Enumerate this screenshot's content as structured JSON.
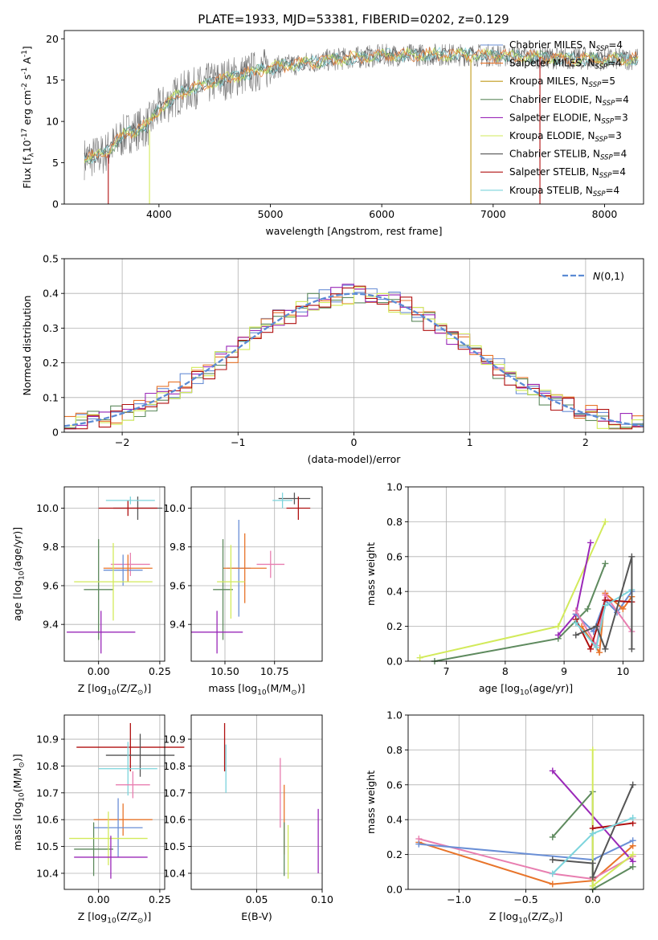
{
  "title": "PLATE=1933, MJD=53381, FIBERID=0202, z=0.129",
  "colors": {
    "Chabrier MILES": "#6a8fd6",
    "Salpeter MILES": "#e8742a",
    "Kroupa MILES": "#c09a1a",
    "Chabrier ELODIE": "#5e8a5e",
    "Salpeter ELODIE": "#9a28b8",
    "Kroupa ELODIE": "#d2ea5a",
    "Chabrier STELIB": "#555555",
    "Salpeter STELIB": "#b01010",
    "Kroupa STELIB": "#7cd4dc",
    "pink": "#e87eb0",
    "grid": "#b0b0b0",
    "gauss": "#5b8bd4"
  },
  "chart_data": [
    {
      "id": "spectrum",
      "type": "line",
      "xlabel": "wavelength [Angstrom, rest frame]",
      "ylabel": "Flux [f$_\\lambda$10$^{-17}$ erg cm$^{-2}$ s$^{-1}$ A$^{-1}$]",
      "xlim": [
        3150,
        8350
      ],
      "ylim": [
        0,
        21
      ],
      "xticks": [
        4000,
        5000,
        6000,
        7000,
        8000
      ],
      "yticks": [
        0,
        5,
        10,
        15,
        20
      ],
      "grid": false,
      "legend_position": "right",
      "legend": [
        {
          "model": "Chabrier MILES",
          "label": "Chabrier MILES, N",
          "sub": "SSP",
          "n": "=4"
        },
        {
          "model": "Salpeter MILES",
          "label": "Salpeter MILES, N",
          "sub": "SSP",
          "n": "=4"
        },
        {
          "model": "Kroupa MILES",
          "label": "Kroupa MILES, N",
          "sub": "SSP",
          "n": "=5"
        },
        {
          "model": "Chabrier ELODIE",
          "label": "Chabrier ELODIE, N",
          "sub": "SSP",
          "n": "=4"
        },
        {
          "model": "Salpeter ELODIE",
          "label": "Salpeter ELODIE, N",
          "sub": "SSP",
          "n": "=3"
        },
        {
          "model": "Kroupa ELODIE",
          "label": "Kroupa ELODIE, N",
          "sub": "SSP",
          "n": "=3"
        },
        {
          "model": "Chabrier STELIB",
          "label": "Chabrier STELIB, N",
          "sub": "SSP",
          "n": "=4"
        },
        {
          "model": "Salpeter STELIB",
          "label": "Salpeter STELIB, N",
          "sub": "SSP",
          "n": "=4"
        },
        {
          "model": "Kroupa STELIB",
          "label": "Kroupa STELIB, N",
          "sub": "SSP",
          "n": "=4"
        }
      ],
      "continuum": [
        [
          3330,
          5.5
        ],
        [
          3500,
          6.0
        ],
        [
          3700,
          8.5
        ],
        [
          3900,
          9.5
        ],
        [
          4000,
          11.5
        ],
        [
          4200,
          13.5
        ],
        [
          4500,
          14.8
        ],
        [
          5000,
          16.5
        ],
        [
          5500,
          17.4
        ],
        [
          6000,
          18.0
        ],
        [
          6500,
          18.1
        ],
        [
          7000,
          18.0
        ],
        [
          7500,
          17.7
        ],
        [
          8000,
          17.5
        ],
        [
          8300,
          17.6
        ]
      ],
      "drop_lines": [
        {
          "model": "Salpeter STELIB",
          "x": 3545,
          "y_from": 6.0
        },
        {
          "model": "Kroupa ELODIE",
          "x": 3915,
          "y_from": 9.0
        },
        {
          "model": "Kroupa MILES",
          "x": 6800,
          "y_from": 17.5
        },
        {
          "model": "Salpeter STELIB",
          "x": 7420,
          "y_from": 17.8
        }
      ]
    },
    {
      "id": "residuals",
      "type": "histogram",
      "xlabel": "(data-model)/error",
      "ylabel": "Normed distribution",
      "xlim": [
        -2.5,
        2.5
      ],
      "ylim": [
        0,
        0.5
      ],
      "xticks": [
        -2,
        -1,
        0,
        1,
        2
      ],
      "xticklabels": [
        "−2",
        "−1",
        "0",
        "1",
        "2"
      ],
      "yticks": [
        0.0,
        0.1,
        0.2,
        0.3,
        0.4,
        0.5
      ],
      "grid": true,
      "bin_width": 0.1,
      "legend_position": "top-right",
      "legend": [
        {
          "label": "$\\mathcal{N}(0,1)$"
        }
      ],
      "series_models": [
        "Chabrier MILES",
        "Salpeter MILES",
        "Chabrier ELODIE",
        "Salpeter ELODIE",
        "Kroupa ELODIE",
        "Salpeter STELIB"
      ]
    },
    {
      "id": "age-vs-Z",
      "type": "errorbar",
      "xlabel": "Z [log$_{10}$(Z/Z$_\\odot$)]",
      "ylabel": "age  [log$_{10}$(age/yr)]",
      "xlim": [
        -0.14,
        0.27
      ],
      "ylim": [
        9.21,
        10.11
      ],
      "xticks": [
        0.0,
        0.25
      ],
      "xticklabels": [
        "0.00",
        "0.25"
      ],
      "yticks": [
        9.4,
        9.6,
        9.8,
        10.0
      ],
      "yticklabels": [
        "9.4",
        "9.6",
        "9.8",
        "10.0"
      ],
      "grid": true,
      "points": [
        {
          "model": "Chabrier STELIB",
          "x": 0.16,
          "xerr": 0.1,
          "y": 10.0,
          "yerr": 0.06
        },
        {
          "model": "Salpeter STELIB",
          "x": 0.12,
          "xerr": 0.12,
          "y": 10.0,
          "yerr": 0.04
        },
        {
          "model": "Kroupa STELIB",
          "x": 0.13,
          "xerr": 0.1,
          "y": 10.04,
          "yerr": 0.02
        },
        {
          "model": "pink",
          "x": 0.13,
          "xerr": 0.08,
          "y": 9.71,
          "yerr": 0.06
        },
        {
          "model": "Chabrier MILES",
          "x": 0.1,
          "xerr": 0.08,
          "y": 9.68,
          "yerr": 0.08
        },
        {
          "model": "Salpeter MILES",
          "x": 0.12,
          "xerr": 0.1,
          "y": 9.69,
          "yerr": 0.07
        },
        {
          "model": "Chabrier ELODIE",
          "x": 0.0,
          "xerr": 0.06,
          "y": 9.58,
          "yerr": 0.26
        },
        {
          "model": "Kroupa ELODIE",
          "x": 0.06,
          "xerr": 0.16,
          "y": 9.62,
          "yerr": 0.2
        },
        {
          "model": "Salpeter ELODIE",
          "x": 0.01,
          "xerr": 0.14,
          "y": 9.36,
          "yerr": 0.11
        }
      ]
    },
    {
      "id": "age-vs-mass",
      "type": "errorbar",
      "xlabel": "mass [log$_{10}$(M/M$_\\odot$)]",
      "ylabel": "",
      "xlim": [
        10.33,
        10.99
      ],
      "ylim": [
        9.21,
        10.11
      ],
      "xticks": [
        10.5,
        10.75
      ],
      "xticklabels": [
        "10.50",
        "10.75"
      ],
      "yticks": [
        9.4,
        9.6,
        9.8,
        10.0
      ],
      "yticklabels": [
        "9.4",
        "9.6",
        "9.8",
        "10.0"
      ],
      "grid": true,
      "points": [
        {
          "model": "Chabrier STELIB",
          "x": 10.85,
          "xerr": 0.08,
          "y": 10.05,
          "yerr": 0.03
        },
        {
          "model": "Salpeter STELIB",
          "x": 10.87,
          "xerr": 0.06,
          "y": 10.0,
          "yerr": 0.06
        },
        {
          "model": "Kroupa STELIB",
          "x": 10.79,
          "xerr": 0.05,
          "y": 10.04,
          "yerr": 0.04
        },
        {
          "model": "pink",
          "x": 10.73,
          "xerr": 0.07,
          "y": 9.71,
          "yerr": 0.07
        },
        {
          "model": "Chabrier MILES",
          "x": 10.57,
          "xerr": 0.06,
          "y": 9.69,
          "yerr": 0.25
        },
        {
          "model": "Salpeter MILES",
          "x": 10.6,
          "xerr": 0.11,
          "y": 9.69,
          "yerr": 0.18
        },
        {
          "model": "Chabrier ELODIE",
          "x": 10.49,
          "xerr": 0.05,
          "y": 9.58,
          "yerr": 0.26
        },
        {
          "model": "Kroupa ELODIE",
          "x": 10.53,
          "xerr": 0.07,
          "y": 9.62,
          "yerr": 0.19
        },
        {
          "model": "Salpeter ELODIE",
          "x": 10.46,
          "xerr": 0.13,
          "y": 9.36,
          "yerr": 0.11
        }
      ]
    },
    {
      "id": "weight-vs-age",
      "type": "line",
      "xlabel": "age  [log$_{10}$(age/yr)]",
      "ylabel": "mass weight",
      "xlim": [
        6.35,
        10.35
      ],
      "ylim": [
        0,
        1.0
      ],
      "xticks": [
        7,
        8,
        9,
        10
      ],
      "xticklabels": [
        "7",
        "8",
        "9",
        "10"
      ],
      "yticks": [
        0.0,
        0.2,
        0.4,
        0.6,
        0.8,
        1.0
      ],
      "yticklabels": [
        "0.0",
        "0.2",
        "0.4",
        "0.6",
        "0.8",
        "1.0"
      ],
      "grid": true,
      "series": [
        {
          "model": "Kroupa ELODIE",
          "x": [
            6.55,
            8.9,
            9.7
          ],
          "y": [
            0.02,
            0.2,
            0.8
          ]
        },
        {
          "model": "Chabrier ELODIE",
          "x": [
            6.8,
            8.9,
            9.4,
            9.7
          ],
          "y": [
            0.0,
            0.13,
            0.3,
            0.56
          ]
        },
        {
          "model": "Salpeter ELODIE",
          "x": [
            8.9,
            9.2,
            9.45
          ],
          "y": [
            0.15,
            0.27,
            0.68
          ]
        },
        {
          "model": "Chabrier MILES",
          "x": [
            9.2,
            9.5,
            9.7,
            9.9,
            10.15
          ],
          "y": [
            0.27,
            0.17,
            0.35,
            0.28,
            0.4
          ]
        },
        {
          "model": "Salpeter MILES",
          "x": [
            9.3,
            9.6,
            9.7,
            10.0,
            10.15
          ],
          "y": [
            0.2,
            0.05,
            0.39,
            0.3,
            0.37
          ]
        },
        {
          "model": "pink",
          "x": [
            9.2,
            9.55,
            9.7,
            10.15
          ],
          "y": [
            0.29,
            0.09,
            0.38,
            0.17
          ]
        },
        {
          "model": "Salpeter STELIB",
          "x": [
            9.2,
            9.45,
            9.7,
            10.15
          ],
          "y": [
            0.24,
            0.07,
            0.35,
            0.34
          ]
        },
        {
          "model": "Kroupa STELIB",
          "x": [
            9.2,
            9.55,
            9.7,
            10.15
          ],
          "y": [
            0.22,
            0.08,
            0.32,
            0.41
          ]
        },
        {
          "model": "Chabrier STELIB",
          "x": [
            9.2,
            9.55,
            9.7,
            10.15,
            10.15
          ],
          "y": [
            0.15,
            0.2,
            0.07,
            0.6,
            0.07
          ]
        }
      ]
    },
    {
      "id": "mass-vs-Z",
      "type": "errorbar",
      "xlabel": "Z [log$_{10}$(Z/Z$_\\odot$)]",
      "ylabel": "mass [log$_{10}$(M/M$_\\odot$)]",
      "xlim": [
        -0.14,
        0.27
      ],
      "ylim": [
        10.34,
        10.99
      ],
      "xticks": [
        0.0,
        0.25
      ],
      "xticklabels": [
        "0.00",
        "0.25"
      ],
      "yticks": [
        10.4,
        10.5,
        10.6,
        10.7,
        10.8,
        10.9
      ],
      "yticklabels": [
        "10.4",
        "10.5",
        "10.6",
        "10.7",
        "10.8",
        "10.9"
      ],
      "grid": true,
      "points": [
        {
          "model": "Salpeter STELIB",
          "x": 0.13,
          "xerr": 0.22,
          "y": 10.87,
          "yerr": 0.09
        },
        {
          "model": "Chabrier STELIB",
          "x": 0.17,
          "xerr": 0.14,
          "y": 10.84,
          "yerr": 0.08
        },
        {
          "model": "Kroupa STELIB",
          "x": 0.12,
          "xerr": 0.12,
          "y": 10.79,
          "yerr": 0.1
        },
        {
          "model": "pink",
          "x": 0.14,
          "xerr": 0.07,
          "y": 10.73,
          "yerr": 0.05
        },
        {
          "model": "Salpeter MILES",
          "x": 0.1,
          "xerr": 0.12,
          "y": 10.6,
          "yerr": 0.06
        },
        {
          "model": "Chabrier MILES",
          "x": 0.08,
          "xerr": 0.1,
          "y": 10.57,
          "yerr": 0.11
        },
        {
          "model": "Chabrier ELODIE",
          "x": -0.02,
          "xerr": 0.08,
          "y": 10.49,
          "yerr": 0.1
        },
        {
          "model": "Kroupa ELODIE",
          "x": 0.04,
          "xerr": 0.16,
          "y": 10.53,
          "yerr": 0.1
        },
        {
          "model": "Salpeter ELODIE",
          "x": 0.05,
          "xerr": 0.15,
          "y": 10.46,
          "yerr": 0.08
        }
      ]
    },
    {
      "id": "mass-vs-ebv",
      "type": "errorbar",
      "xlabel": "E(B-V)",
      "ylabel": "",
      "xlim": [
        0.0,
        0.1
      ],
      "ylim": [
        10.34,
        10.99
      ],
      "xticks": [
        0.05,
        0.1
      ],
      "xticklabels": [
        "0.05",
        "0.10"
      ],
      "yticks": [
        10.4,
        10.5,
        10.6,
        10.7,
        10.8,
        10.9
      ],
      "yticklabels": [
        "10.4",
        "10.5",
        "10.6",
        "10.7",
        "10.8",
        "10.9"
      ],
      "grid": true,
      "points": [
        {
          "model": "Salpeter STELIB",
          "x": 0.0255,
          "xerr": 0,
          "y": 10.87,
          "yerr": 0.09
        },
        {
          "model": "Kroupa STELIB",
          "x": 0.0265,
          "xerr": 0,
          "y": 10.79,
          "yerr": 0.09
        },
        {
          "model": "pink",
          "x": 0.068,
          "xerr": 0,
          "y": 10.7,
          "yerr": 0.13
        },
        {
          "model": "Salpeter MILES",
          "x": 0.071,
          "xerr": 0,
          "y": 10.6,
          "yerr": 0.13
        },
        {
          "model": "Chabrier ELODIE",
          "x": 0.071,
          "xerr": 0,
          "y": 10.49,
          "yerr": 0.1
        },
        {
          "model": "Kroupa ELODIE",
          "x": 0.074,
          "xerr": 0,
          "y": 10.48,
          "yerr": 0.1
        },
        {
          "model": "Salpeter ELODIE",
          "x": 0.097,
          "xerr": 0,
          "y": 10.52,
          "yerr": 0.12
        }
      ]
    },
    {
      "id": "weight-vs-Z",
      "type": "line",
      "xlabel": "Z [log$_{10}$(Z/Z$_\\odot$)]",
      "ylabel": "mass weight",
      "xlim": [
        -1.38,
        0.38
      ],
      "ylim": [
        0,
        1.0
      ],
      "xticks": [
        -1.0,
        -0.5,
        0.0
      ],
      "xticklabels": [
        "−1.0",
        "−0.5",
        "0.0"
      ],
      "yticks": [
        0.0,
        0.2,
        0.4,
        0.6,
        0.8,
        1.0
      ],
      "yticklabels": [
        "0.0",
        "0.2",
        "0.4",
        "0.6",
        "0.8",
        "1.0"
      ],
      "grid": true,
      "series": [
        {
          "model": "Salpeter MILES",
          "x": [
            -1.3,
            -0.3,
            0.0,
            0.3
          ],
          "y": [
            0.27,
            0.03,
            0.05,
            0.25
          ]
        },
        {
          "model": "pink",
          "x": [
            -1.3,
            -0.3,
            0.0,
            0.3
          ],
          "y": [
            0.29,
            0.09,
            0.06,
            0.19
          ]
        },
        {
          "model": "Chabrier MILES",
          "x": [
            -1.3,
            0.0,
            0.3
          ],
          "y": [
            0.26,
            0.17,
            0.28
          ]
        },
        {
          "model": "Salpeter ELODIE",
          "x": [
            -0.3,
            0.3
          ],
          "y": [
            0.68,
            0.16
          ]
        },
        {
          "model": "Chabrier ELODIE",
          "x": [
            -0.3,
            0.0,
            0.0,
            0.3
          ],
          "y": [
            0.3,
            0.56,
            0.0,
            0.13
          ]
        },
        {
          "model": "Kroupa ELODIE",
          "x": [
            0.0,
            0.0,
            0.3
          ],
          "y": [
            0.8,
            0.02,
            0.2
          ]
        },
        {
          "model": "Chabrier STELIB",
          "x": [
            -0.3,
            0.0,
            0.0,
            0.3
          ],
          "y": [
            0.17,
            0.15,
            0.07,
            0.6
          ]
        },
        {
          "model": "Salpeter STELIB",
          "x": [
            0.0,
            0.3
          ],
          "y": [
            0.35,
            0.38
          ]
        },
        {
          "model": "Kroupa STELIB",
          "x": [
            -0.3,
            0.0,
            0.3
          ],
          "y": [
            0.09,
            0.32,
            0.41
          ]
        }
      ]
    }
  ]
}
